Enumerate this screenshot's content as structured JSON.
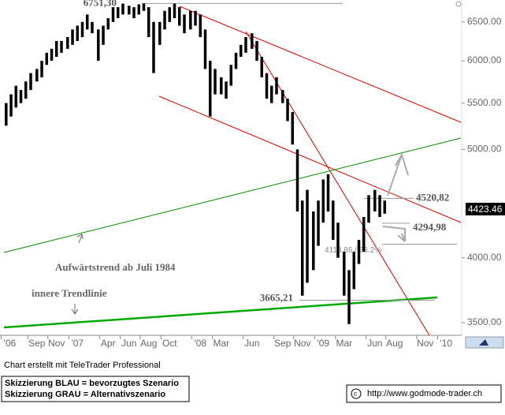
{
  "chart_data": {
    "type": "hilo",
    "x": [
      2006.42,
      2006.46,
      2006.5,
      2006.54,
      2006.58,
      2006.62,
      2006.67,
      2006.71,
      2006.75,
      2006.79,
      2006.83,
      2006.87,
      2006.92,
      2006.96,
      2007.0,
      2007.04,
      2007.08,
      2007.12,
      2007.17,
      2007.21,
      2007.25,
      2007.29,
      2007.33,
      2007.37,
      2007.42,
      2007.46,
      2007.5,
      2007.54,
      2007.58,
      2007.62,
      2007.67,
      2007.71,
      2007.75,
      2007.79,
      2007.83,
      2007.87,
      2007.92,
      2007.96,
      2008.0,
      2008.04,
      2008.08,
      2008.12,
      2008.17,
      2008.21,
      2008.25,
      2008.29,
      2008.33,
      2008.37,
      2008.42,
      2008.46,
      2008.5,
      2008.54,
      2008.58,
      2008.62,
      2008.67,
      2008.71,
      2008.75,
      2008.79,
      2008.83,
      2008.87,
      2008.92,
      2008.96,
      2009.0,
      2009.04,
      2009.08,
      2009.12,
      2009.17,
      2009.21,
      2009.25,
      2009.29,
      2009.33,
      2009.37,
      2009.42,
      2009.46,
      2009.5
    ],
    "high": [
      5500,
      5600,
      5700,
      5650,
      5750,
      5850,
      5900,
      6000,
      6100,
      6150,
      6250,
      6250,
      6300,
      6400,
      6450,
      6500,
      6600,
      6500,
      6400,
      6450,
      6550,
      6700,
      6700,
      6750,
      6720,
      6700,
      6740,
      6751,
      6700,
      6500,
      6500,
      6650,
      6700,
      6750,
      6700,
      6600,
      6650,
      6650,
      6600,
      6400,
      6000,
      5900,
      5800,
      5750,
      5950,
      6100,
      6200,
      6300,
      6350,
      6250,
      6050,
      5850,
      5700,
      5800,
      5650,
      5550,
      5400,
      5000,
      4500,
      4600,
      4400,
      4500,
      4700,
      4750,
      4500,
      4300,
      4050,
      3900,
      4050,
      4150,
      4350,
      4550,
      4600,
      4550,
      4500
    ],
    "low": [
      5250,
      5350,
      5450,
      5500,
      5550,
      5650,
      5750,
      5800,
      5950,
      6000,
      6050,
      6100,
      6150,
      6200,
      6250,
      6300,
      6400,
      6350,
      6000,
      6200,
      6400,
      6500,
      6550,
      6600,
      6600,
      6550,
      6600,
      6650,
      6300,
      5850,
      6200,
      6400,
      6500,
      6550,
      6450,
      6350,
      6400,
      6450,
      6300,
      5900,
      5350,
      5600,
      5600,
      5550,
      5700,
      5900,
      6050,
      6100,
      6150,
      6000,
      5800,
      5550,
      5500,
      5600,
      5500,
      5300,
      5050,
      4400,
      3700,
      3800,
      3900,
      4100,
      4300,
      4400,
      4150,
      4000,
      3700,
      3490,
      3750,
      3950,
      4050,
      4300,
      4400,
      4350,
      4380
    ],
    "color": "#000000",
    "xlim": [
      2006.37,
      2010.12
    ],
    "xticks": [
      {
        "value": 2006.45,
        "label": "'06"
      },
      {
        "value": 2006.67,
        "label": "Sep"
      },
      {
        "value": 2006.83,
        "label": "Nov"
      },
      {
        "value": 2007.0,
        "label": "'07"
      },
      {
        "value": 2007.25,
        "label": "Apr"
      },
      {
        "value": 2007.42,
        "label": "Jun"
      },
      {
        "value": 2007.58,
        "label": "Aug"
      },
      {
        "value": 2007.75,
        "label": "Oct"
      },
      {
        "value": 2008.0,
        "label": "'08"
      },
      {
        "value": 2008.17,
        "label": "Mar"
      },
      {
        "value": 2008.42,
        "label": "Jun"
      },
      {
        "value": 2008.67,
        "label": "Sep"
      },
      {
        "value": 2008.83,
        "label": "Nov"
      },
      {
        "value": 2009.0,
        "label": "'09"
      },
      {
        "value": 2009.17,
        "label": "Mar"
      },
      {
        "value": 2009.42,
        "label": "Jun"
      },
      {
        "value": 2009.58,
        "label": "Aug"
      },
      {
        "value": 2009.83,
        "label": "Nov"
      },
      {
        "value": 2010.0,
        "label": "'10"
      }
    ],
    "ylim": [
      3410,
      6800
    ],
    "log_scale": true,
    "yticks": [
      {
        "value": 3500,
        "label": "3500.00"
      },
      {
        "value": 4000,
        "label": "4000.00"
      },
      {
        "value": 5000,
        "label": "5000.00"
      },
      {
        "value": 5500,
        "label": "5500.00"
      },
      {
        "value": 6000,
        "label": "6000.00"
      },
      {
        "value": 6500,
        "label": "6500.00"
      }
    ],
    "last": 4423.46,
    "levels": [
      {
        "value": 6751.3,
        "label": "6751,30"
      },
      {
        "value": 4520.82,
        "label": "4520,82"
      },
      {
        "value": 4294.98,
        "label": "4294,98"
      },
      {
        "value": 4113.86,
        "label": "4113.86 / 38.2%"
      },
      {
        "value": 3665.21,
        "label": "3665,21"
      }
    ],
    "annotations": [
      "Aufwärtstrend  ab Juli 1984",
      "innere Trendlinie"
    ]
  },
  "footer": {
    "credit": "Chart erstellt mit TeleTrader Professional",
    "legend": [
      "Skizzierung BLAU = bevorzugtes Szenario",
      "Skizzierung GRAU = Alternativszenario"
    ],
    "url": "http://www.godmode-trader.ch"
  }
}
